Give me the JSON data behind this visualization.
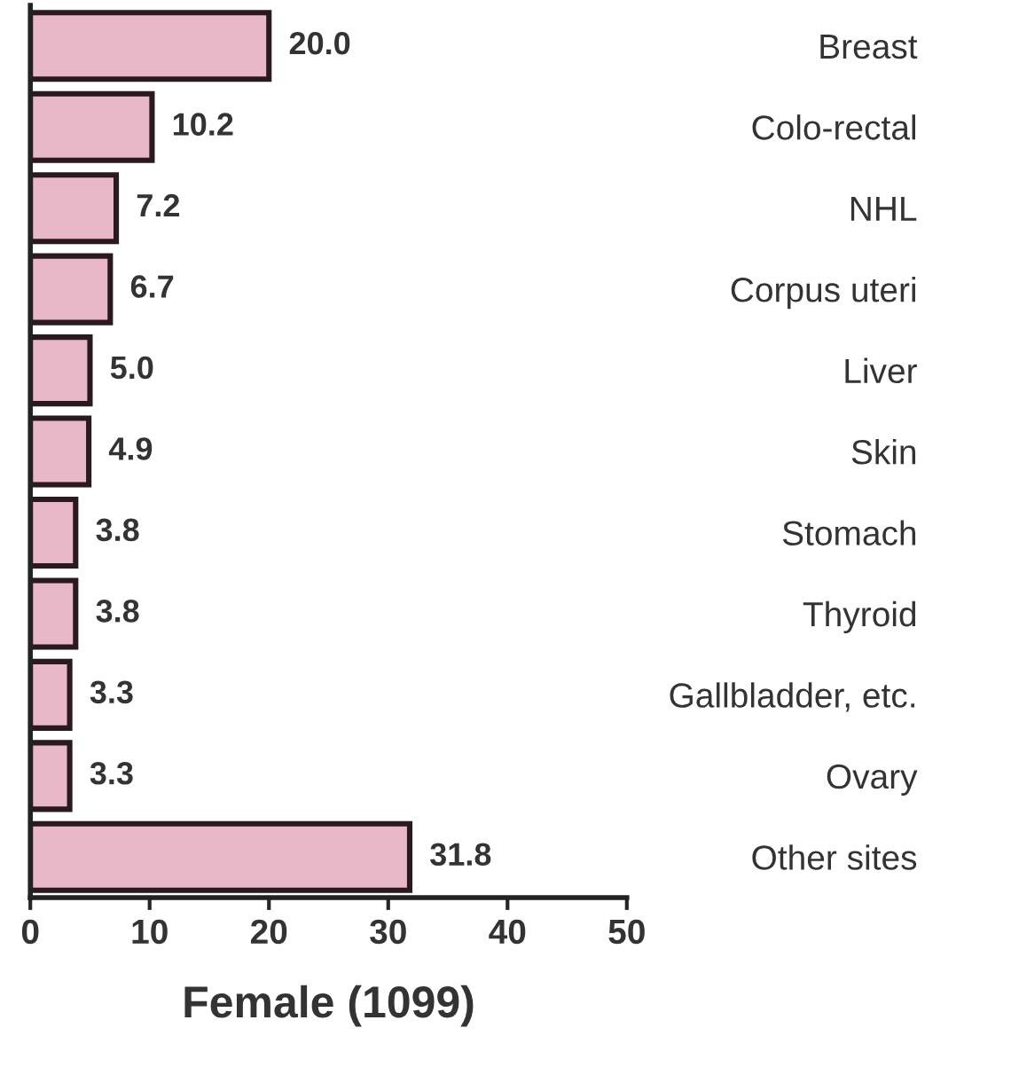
{
  "chart_data": {
    "type": "bar",
    "orientation": "horizontal",
    "xlabel": "Female (1099)",
    "categories": [
      "Breast",
      "Colo-rectal",
      "NHL",
      "Corpus uteri",
      "Liver",
      "Skin",
      "Stomach",
      "Thyroid",
      "Gallbladder, etc.",
      "Ovary",
      "Other sites"
    ],
    "values": [
      20.0,
      10.2,
      7.2,
      6.7,
      5.0,
      4.9,
      3.8,
      3.8,
      3.3,
      3.3,
      31.8
    ],
    "value_labels": [
      "20.0",
      "10.2",
      "7.2",
      "6.7",
      "5.0",
      "4.9",
      "3.8",
      "3.8",
      "3.3",
      "3.3",
      "31.8"
    ],
    "color": "#e9b8c8",
    "xlim": [
      0,
      50
    ],
    "xticks": [
      0,
      10,
      20,
      30,
      40,
      50
    ],
    "grid": false,
    "legend": false
  }
}
